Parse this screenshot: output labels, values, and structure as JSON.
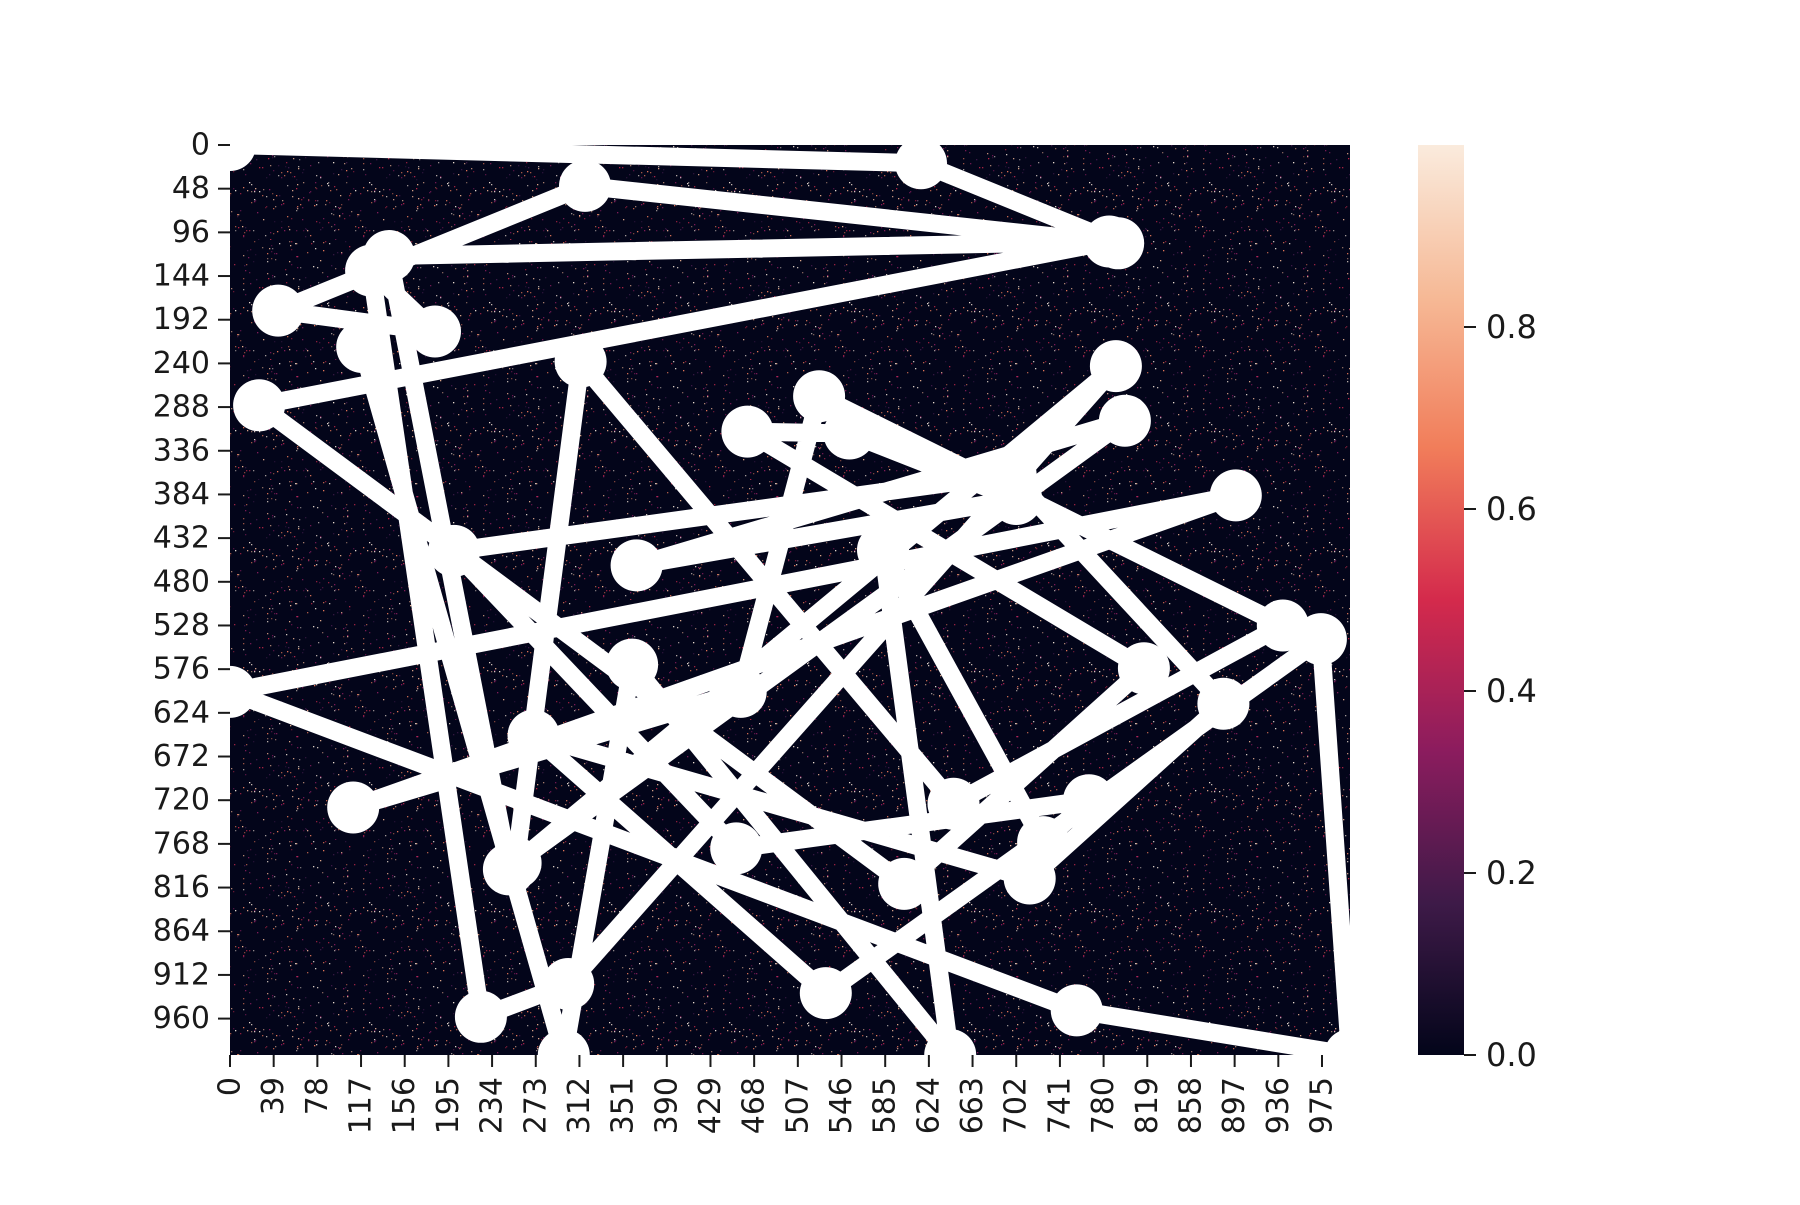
{
  "chart_data": {
    "type": "heatmap",
    "title": "",
    "xlabel": "",
    "ylabel": "",
    "grid": false,
    "heatmap": {
      "rows": 1000,
      "cols": 1000,
      "value_range": [
        0,
        1
      ],
      "background_value": 0.0,
      "distribution": "sparse random noise, mostly near 0 with scattered higher values"
    },
    "colorbar": {
      "colormap": "rocket",
      "min": 0.0,
      "max": 1.0,
      "ticks": [
        0.0,
        0.2,
        0.4,
        0.6,
        0.8
      ],
      "tick_labels": [
        "0.0",
        "0.2",
        "0.4",
        "0.6",
        "0.8"
      ],
      "colors": [
        "#03051a",
        "#3e1a48",
        "#8b1c5e",
        "#d42a4c",
        "#f17d5a",
        "#f6b996",
        "#faebdd"
      ]
    },
    "x_ticks": [
      "0",
      "39",
      "78",
      "117",
      "156",
      "195",
      "234",
      "273",
      "312",
      "351",
      "390",
      "429",
      "468",
      "507",
      "546",
      "585",
      "624",
      "663",
      "702",
      "741",
      "780",
      "819",
      "858",
      "897",
      "936",
      "975"
    ],
    "y_ticks": [
      "0",
      "48",
      "96",
      "144",
      "192",
      "240",
      "288",
      "336",
      "384",
      "432",
      "480",
      "528",
      "576",
      "624",
      "672",
      "720",
      "768",
      "816",
      "864",
      "912",
      "960"
    ],
    "x_tick_values": [
      0,
      39,
      78,
      117,
      156,
      195,
      234,
      273,
      312,
      351,
      390,
      429,
      468,
      507,
      546,
      585,
      624,
      663,
      702,
      741,
      780,
      819,
      858,
      897,
      936,
      975
    ],
    "y_tick_values": [
      0,
      48,
      96,
      144,
      192,
      240,
      288,
      336,
      384,
      432,
      480,
      528,
      576,
      624,
      672,
      720,
      768,
      816,
      864,
      912,
      960
    ],
    "xlim": [
      0,
      1000
    ],
    "ylim": [
      0,
      1000
    ],
    "series": [
      {
        "color": "#ffffff",
        "points": [
          [
            0,
            0
          ],
          [
            617,
            20
          ],
          [
            793,
            108
          ],
          [
            317,
            45
          ],
          [
            43,
            182
          ],
          [
            183,
            205
          ],
          [
            126,
            138
          ],
          [
            224,
            958
          ],
          [
            302,
            922
          ],
          [
            791,
            243
          ],
          [
            249,
            796
          ],
          [
            142,
            122
          ],
          [
            785,
            106
          ],
          [
            26,
            286
          ],
          [
            602,
            812
          ],
          [
            816,
            575
          ],
          [
            462,
            315
          ],
          [
            553,
            317
          ],
          [
            702,
            389
          ],
          [
            363,
            462
          ],
          [
            799,
            303
          ],
          [
            255,
            789
          ],
          [
            313,
            238
          ],
          [
            646,
            724
          ],
          [
            940,
            528
          ],
          [
            526,
            276
          ],
          [
            456,
            601
          ],
          [
            110,
            728
          ],
          [
            898,
            385
          ],
          [
            0,
            601
          ],
          [
            756,
            951
          ],
          [
            1000,
            1000
          ],
          [
            974,
            543
          ],
          [
            532,
            932
          ],
          [
            271,
            649
          ],
          [
            714,
            806
          ],
          [
            887,
            614
          ],
          [
            697,
            362
          ],
          [
            200,
            446
          ],
          [
            452,
            773
          ],
          [
            767,
            720
          ],
          [
            726,
            766
          ],
          [
            583,
            445
          ],
          [
            643,
            1000
          ],
          [
            359,
            571
          ],
          [
            298,
            1000
          ],
          [
            118,
            222
          ]
        ]
      }
    ]
  }
}
